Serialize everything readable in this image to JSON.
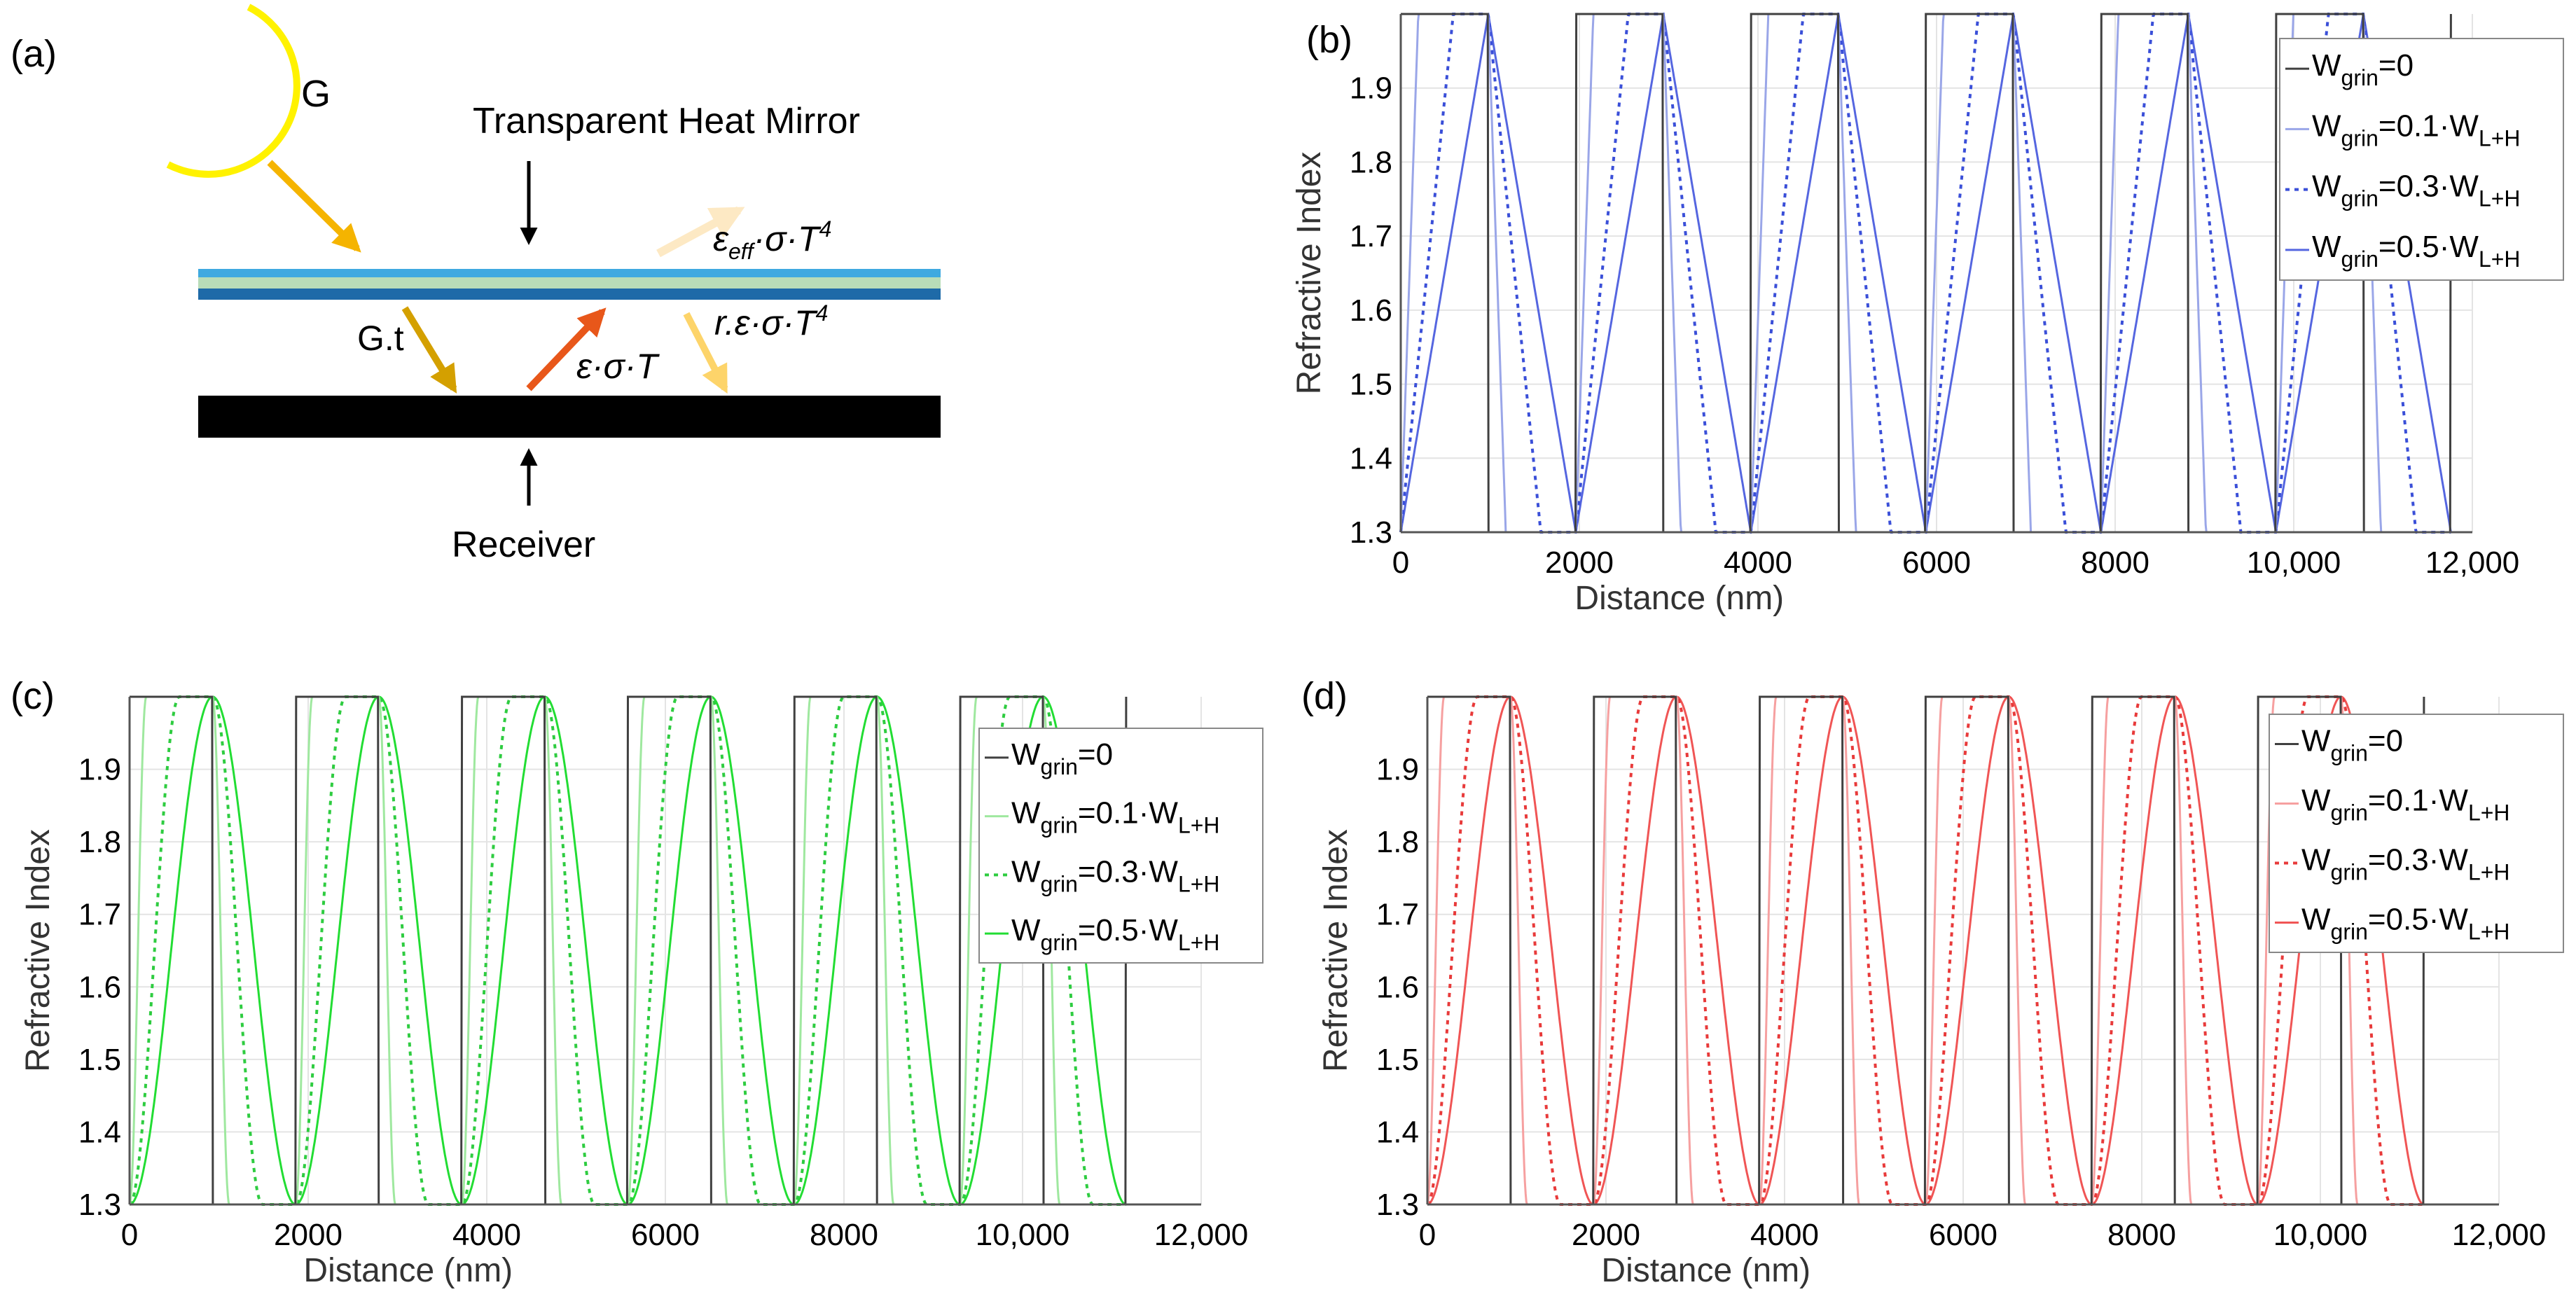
{
  "panel_a": {
    "label": "(a)",
    "sun_label": "G",
    "mirror_label": "Transparent Heat Mirror",
    "receiver_label": "Receiver",
    "transmitted_label": "G.t",
    "emission_label": "ε·σ·T",
    "effective_emission_label": {
      "base": "ε",
      "sub": "eff",
      "rest": "·σ·T",
      "sup": "4"
    },
    "reflected_label": {
      "base": "r.ε·σ·T",
      "sup": "4"
    },
    "colors": {
      "sun": "#fff200",
      "incident_arrow": "#f5b400",
      "transmitted_arrow": "#d4a000",
      "emitted_arrow": "#e8571a",
      "effective_arrow": "#fde9c4",
      "reflected_arrow": "#fdd46a",
      "mirror_layers": [
        "#3fa9e0",
        "#b8dcb8",
        "#1e6aa8"
      ],
      "receiver": "#000000"
    }
  },
  "chart_data": [
    {
      "panel": "(b)",
      "type": "line",
      "profile": "triangle",
      "xlabel": "Distance (nm)",
      "ylabel": "Refractive Index",
      "xlim": [
        0,
        12000
      ],
      "ylim": [
        1.3,
        2.0
      ],
      "xticks": [
        0,
        2000,
        4000,
        6000,
        8000,
        10000,
        12000
      ],
      "xtick_labels": [
        "0",
        "2000",
        "4000",
        "6000",
        "8000",
        "10,000",
        "12,000"
      ],
      "yticks": [
        1.3,
        1.4,
        1.5,
        1.6,
        1.7,
        1.8,
        1.9
      ],
      "ytick_labels": [
        "1.3",
        "1.4",
        "1.5",
        "1.6",
        "1.7",
        "1.8",
        "1.9"
      ],
      "grid": true,
      "legend_position": "right",
      "n_low": 1.3,
      "n_high": 2.0,
      "start_x": 0,
      "period": 1960,
      "periods": 6,
      "series": [
        {
          "name": "W=0",
          "label_base": "W",
          "sub1": "grin",
          "mid": "=0",
          "sub2": "",
          "grin_fraction": 0,
          "color": "#404040",
          "dash": "solid",
          "width": 3
        },
        {
          "name": "W=0.1·W",
          "label_base": "W",
          "sub1": "grin",
          "mid": "=0.1·W",
          "sub2": "L+H",
          "grin_fraction": 0.1,
          "color": "#9aa6e8",
          "dash": "solid",
          "width": 3
        },
        {
          "name": "W=0.3·W",
          "label_base": "W",
          "sub1": "grin",
          "mid": "=0.3·W",
          "sub2": "L+H",
          "grin_fraction": 0.3,
          "color": "#3a4fd8",
          "dash": "dotted",
          "width": 4
        },
        {
          "name": "W=0.5·W",
          "label_base": "W",
          "sub1": "grin",
          "mid": "=0.5·W",
          "sub2": "L+H",
          "grin_fraction": 0.5,
          "color": "#5566e0",
          "dash": "solid",
          "width": 3
        }
      ]
    },
    {
      "panel": "(c)",
      "type": "line",
      "profile": "sine",
      "xlabel": "Distance (nm)",
      "ylabel": "Refractive Index",
      "xlim": [
        0,
        12000
      ],
      "ylim": [
        1.3,
        2.0
      ],
      "xticks": [
        0,
        2000,
        4000,
        6000,
        8000,
        10000,
        12000
      ],
      "xtick_labels": [
        "0",
        "2000",
        "4000",
        "6000",
        "8000",
        "10,000",
        "12,000"
      ],
      "yticks": [
        1.3,
        1.4,
        1.5,
        1.6,
        1.7,
        1.8,
        1.9
      ],
      "ytick_labels": [
        "1.3",
        "1.4",
        "1.5",
        "1.6",
        "1.7",
        "1.8",
        "1.9"
      ],
      "grid": true,
      "legend_position": "right",
      "n_low": 1.3,
      "n_high": 2.0,
      "start_x": 0,
      "period": 1860,
      "periods": 6,
      "series": [
        {
          "name": "W=0",
          "label_base": "W",
          "sub1": "grin",
          "mid": "=0",
          "sub2": "",
          "grin_fraction": 0,
          "color": "#404040",
          "dash": "solid",
          "width": 3
        },
        {
          "name": "W=0.1·W",
          "label_base": "W",
          "sub1": "grin",
          "mid": "=0.1·W",
          "sub2": "L+H",
          "grin_fraction": 0.1,
          "color": "#9fe89f",
          "dash": "solid",
          "width": 3
        },
        {
          "name": "W=0.3·W",
          "label_base": "W",
          "sub1": "grin",
          "mid": "=0.3·W",
          "sub2": "L+H",
          "grin_fraction": 0.3,
          "color": "#2ecc40",
          "dash": "dotted",
          "width": 4
        },
        {
          "name": "W=0.5·W",
          "label_base": "W",
          "sub1": "grin",
          "mid": "=0.5·W",
          "sub2": "L+H",
          "grin_fraction": 0.5,
          "color": "#22dd33",
          "dash": "solid",
          "width": 3
        }
      ]
    },
    {
      "panel": "(d)",
      "type": "line",
      "profile": "smooth",
      "xlabel": "Distance (nm)",
      "ylabel": "Refractive Index",
      "xlim": [
        0,
        12000
      ],
      "ylim": [
        1.3,
        2.0
      ],
      "xticks": [
        0,
        2000,
        4000,
        6000,
        8000,
        10000,
        12000
      ],
      "xtick_labels": [
        "0",
        "2000",
        "4000",
        "6000",
        "8000",
        "10,000",
        "12,000"
      ],
      "yticks": [
        1.3,
        1.4,
        1.5,
        1.6,
        1.7,
        1.8,
        1.9
      ],
      "ytick_labels": [
        "1.3",
        "1.4",
        "1.5",
        "1.6",
        "1.7",
        "1.8",
        "1.9"
      ],
      "grid": true,
      "legend_position": "right",
      "n_low": 1.3,
      "n_high": 2.0,
      "start_x": 0,
      "period": 1860,
      "periods": 6,
      "series": [
        {
          "name": "W=0",
          "label_base": "W",
          "sub1": "grin",
          "mid": "=0",
          "sub2": "",
          "grin_fraction": 0,
          "color": "#404040",
          "dash": "solid",
          "width": 3
        },
        {
          "name": "W=0.1·W",
          "label_base": "W",
          "sub1": "grin",
          "mid": "=0.1·W",
          "sub2": "L+H",
          "grin_fraction": 0.1,
          "color": "#f6a0a0",
          "dash": "solid",
          "width": 3
        },
        {
          "name": "W=0.3·W",
          "label_base": "W",
          "sub1": "grin",
          "mid": "=0.3·W",
          "sub2": "L+H",
          "grin_fraction": 0.3,
          "color": "#e83a3a",
          "dash": "dotted",
          "width": 4
        },
        {
          "name": "W=0.5·W",
          "label_base": "W",
          "sub1": "grin",
          "mid": "=0.5·W",
          "sub2": "L+H",
          "grin_fraction": 0.5,
          "color": "#f05555",
          "dash": "solid",
          "width": 3
        }
      ]
    }
  ]
}
